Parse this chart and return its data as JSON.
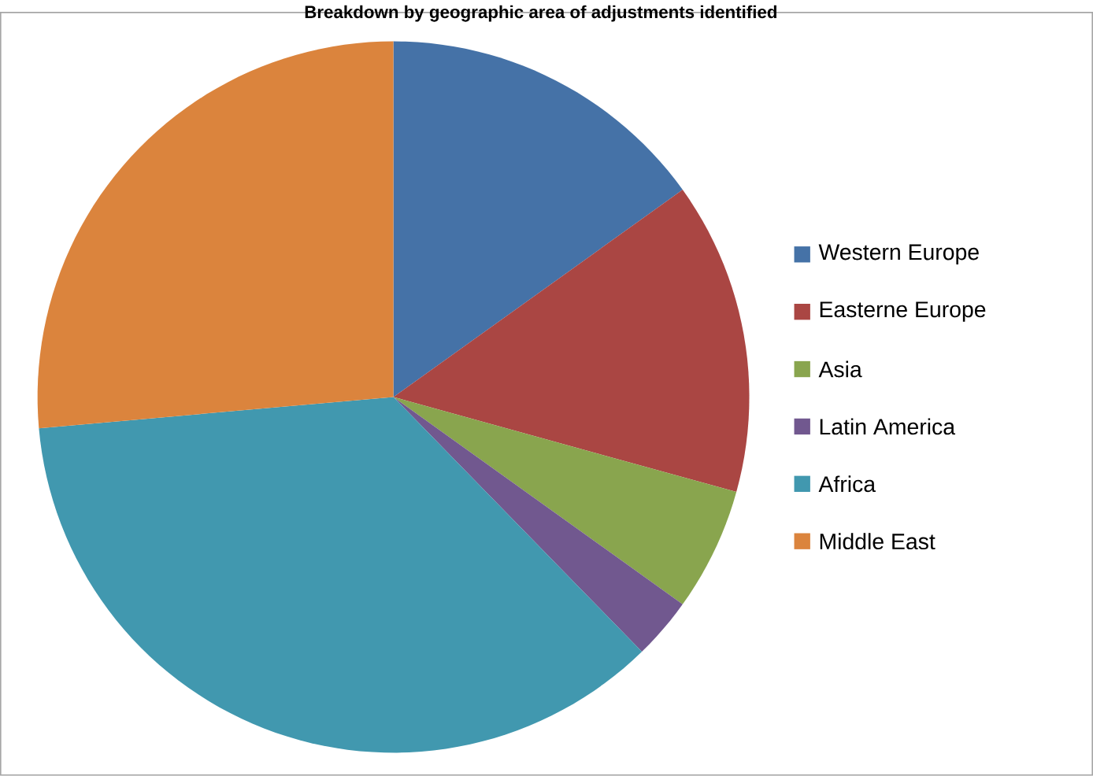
{
  "chart_data": {
    "type": "pie",
    "title": "Breakdown by geographic area of adjustments identified",
    "categories": [
      "Western Europe",
      "Easterne Europe",
      "Asia",
      "Latin America",
      "Africa",
      "Middle East"
    ],
    "values": [
      15.1,
      14.2,
      5.6,
      2.8,
      35.9,
      26.4
    ],
    "colors": [
      "#4572a7",
      "#aa4643",
      "#89a54e",
      "#71588f",
      "#4198af",
      "#db843d"
    ],
    "legend": "right"
  }
}
